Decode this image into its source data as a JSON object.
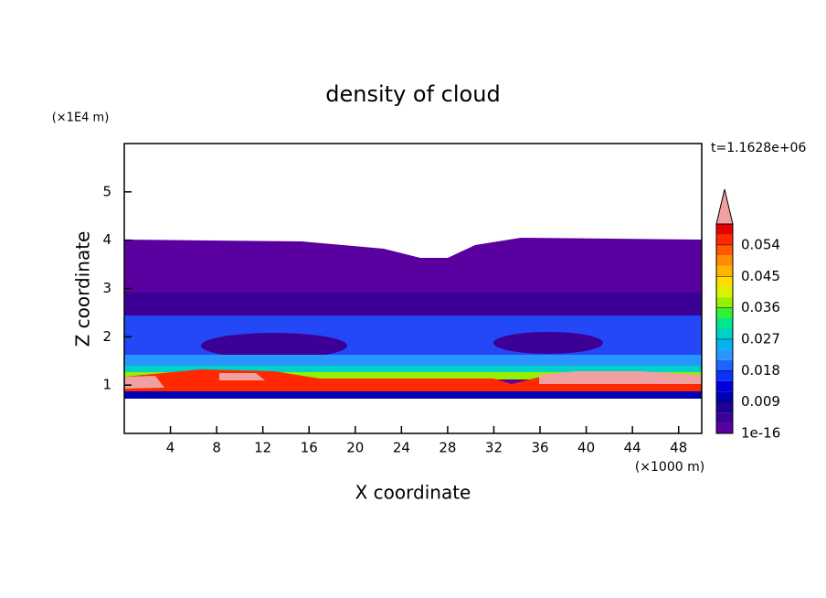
{
  "chart_data": {
    "type": "contour",
    "title": "density of cloud",
    "x_label": "X coordinate",
    "y_label": "Z coordinate",
    "x_unit": "(×1000 m)",
    "y_unit": "(×1E4 m)",
    "time_label": "t=1.1628e+06",
    "xlim": [
      0,
      50
    ],
    "xticks": [
      4,
      8,
      12,
      16,
      20,
      24,
      28,
      32,
      36,
      40,
      44,
      48
    ],
    "ylim": [
      0,
      6
    ],
    "yticks": [
      1,
      2,
      3,
      4,
      5
    ],
    "clim": [
      0,
      0.06
    ],
    "cticks": [
      1e-16,
      0.009,
      0.018,
      0.027,
      0.036,
      0.045,
      0.054
    ],
    "levels": [
      0,
      0.003,
      0.006,
      0.009,
      0.012,
      0.015,
      0.018,
      0.021,
      0.024,
      0.027,
      0.03,
      0.033,
      0.036,
      0.039,
      0.042,
      0.045,
      0.048,
      0.051,
      0.054,
      0.057,
      0.06
    ],
    "colors": [
      "#5a00a0",
      "#3c0096",
      "#1e0096",
      "#0000b4",
      "#0000dc",
      "#0a32ff",
      "#1e64ff",
      "#2896ff",
      "#00b4f0",
      "#00d2c8",
      "#00e68c",
      "#32f032",
      "#96f000",
      "#dcf000",
      "#ffdc00",
      "#ffb400",
      "#ff8c00",
      "#ff5a00",
      "#ff2800",
      "#e60000"
    ],
    "extend_color": "#f0a0a0"
  }
}
